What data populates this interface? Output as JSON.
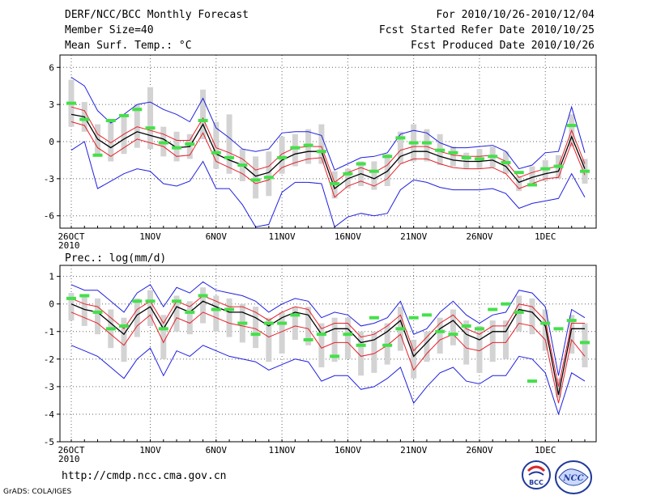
{
  "header": {
    "left": [
      "DERF/NCC/BCC Monthly Forecast",
      "Member Size=40",
      "Mean Surf. Temp.: °C"
    ],
    "right": [
      "For 2010/10/26-2010/12/04",
      "Fcst Started Refer Date 2010/10/25",
      "Fcst Produced Date 2010/10/26"
    ]
  },
  "footer": {
    "url": "http://cmdp.ncc.cma.gov.cn",
    "credit": "GrADS: COLA/IGES",
    "logo_bcc": "BCC",
    "logo_ncc": "NCC"
  },
  "colors": {
    "ensemble_mean": "#000000",
    "spread_inner": "#e8202a",
    "spread_outer": "#1f1fe0",
    "range_bar": "#d3d3d3",
    "observed_mark": "#44e04a",
    "grid": "#666666"
  },
  "chart_data": [
    {
      "type": "line",
      "panel": "temperature",
      "title": "Mean Surf. Temp.: °C",
      "ylim": [
        -7,
        7
      ],
      "yticks": [
        6,
        3,
        0,
        -3,
        -6
      ],
      "ylabel": "°C",
      "xtick_labels": [
        {
          "day": 0,
          "label": "26OCT",
          "sub": "2010"
        },
        {
          "day": 6,
          "label": "1NOV"
        },
        {
          "day": 11,
          "label": "6NOV"
        },
        {
          "day": 16,
          "label": "11NOV"
        },
        {
          "day": 21,
          "label": "16NOV"
        },
        {
          "day": 26,
          "label": "21NOV"
        },
        {
          "day": 31,
          "label": "26NOV"
        },
        {
          "day": 36,
          "label": "1DEC"
        }
      ],
      "days": 40,
      "series": [
        {
          "name": "ensemble mean",
          "values": [
            2.2,
            2.0,
            0.2,
            -0.5,
            0.2,
            0.8,
            0.5,
            0.2,
            -0.5,
            -0.4,
            1.4,
            -1.0,
            -1.5,
            -1.9,
            -2.8,
            -2.5,
            -1.5,
            -1.0,
            -0.8,
            -0.8,
            -3.8,
            -3.0,
            -2.6,
            -3.0,
            -2.4,
            -1.2,
            -0.8,
            -0.8,
            -1.2,
            -1.5,
            -1.6,
            -1.6,
            -1.5,
            -2.0,
            -3.3,
            -2.9,
            -2.6,
            -2.4,
            0.4,
            -2.2
          ]
        },
        {
          "name": "upper band",
          "values": [
            2.8,
            2.5,
            0.6,
            -0.1,
            0.6,
            1.2,
            0.9,
            0.6,
            0.1,
            0.1,
            1.9,
            -0.5,
            -0.9,
            -1.4,
            -2.3,
            -2.0,
            -1.0,
            -0.5,
            -0.4,
            -0.4,
            -3.3,
            -2.5,
            -2.1,
            -2.5,
            -1.9,
            -0.7,
            -0.4,
            -0.4,
            -0.8,
            -1.1,
            -1.2,
            -1.2,
            -1.1,
            -1.6,
            -2.9,
            -2.5,
            -2.2,
            -2.0,
            0.9,
            -1.8
          ]
        },
        {
          "name": "lower band",
          "values": [
            1.6,
            1.3,
            -0.5,
            -1.2,
            -0.5,
            0.2,
            -0.1,
            -0.4,
            -1.2,
            -1.1,
            0.7,
            -1.6,
            -2.1,
            -2.6,
            -3.4,
            -3.1,
            -2.1,
            -1.7,
            -1.4,
            -1.3,
            -4.5,
            -3.6,
            -3.2,
            -3.6,
            -3.0,
            -1.8,
            -1.4,
            -1.4,
            -1.8,
            -2.1,
            -2.2,
            -2.2,
            -2.1,
            -2.6,
            -3.8,
            -3.4,
            -3.0,
            -2.9,
            -0.1,
            -2.7
          ]
        },
        {
          "name": "maximum",
          "values": [
            5.2,
            4.5,
            2.5,
            1.5,
            2.2,
            3.0,
            3.2,
            2.6,
            2.2,
            1.6,
            3.5,
            1.1,
            0.3,
            -0.6,
            -0.8,
            -0.6,
            0.7,
            0.8,
            0.8,
            0.5,
            -2.3,
            -1.8,
            -1.3,
            -1.2,
            -0.9,
            0.6,
            0.9,
            0.7,
            -0.1,
            -0.5,
            -0.5,
            -0.4,
            -0.3,
            -0.8,
            -2.2,
            -1.9,
            -0.9,
            -0.8,
            2.8,
            -0.9
          ]
        },
        {
          "name": "minimum",
          "values": [
            -0.7,
            0.0,
            -3.8,
            -3.2,
            -2.6,
            -2.2,
            -2.4,
            -3.4,
            -3.6,
            -3.2,
            -1.6,
            -3.8,
            -3.8,
            -5.1,
            -6.9,
            -6.7,
            -4.1,
            -3.3,
            -3.3,
            -3.4,
            -6.9,
            -6.1,
            -5.8,
            -6.0,
            -5.8,
            -3.9,
            -3.1,
            -3.3,
            -3.7,
            -3.9,
            -3.9,
            -3.9,
            -3.8,
            -4.2,
            -5.4,
            -5.0,
            -4.8,
            -4.6,
            -2.6,
            -4.5
          ]
        }
      ],
      "range_bars": {
        "low": [
          1.2,
          0.8,
          -1.2,
          -1.6,
          -1.0,
          -0.5,
          -0.6,
          -1.2,
          -1.6,
          -1.4,
          0.2,
          -2.2,
          -2.6,
          -3.2,
          -4.6,
          -4.4,
          -2.6,
          -2.0,
          -1.8,
          -1.8,
          -4.6,
          -3.8,
          -3.6,
          -3.9,
          -3.6,
          -1.8,
          -1.6,
          -1.6,
          -1.9,
          -2.0,
          -2.2,
          -2.2,
          -2.1,
          -2.6,
          -4.0,
          -3.6,
          -3.2,
          -3.0,
          -0.4,
          -3.4
        ],
        "high": [
          5.0,
          3.2,
          1.4,
          1.8,
          2.2,
          3.0,
          4.4,
          1.2,
          0.8,
          0.6,
          4.2,
          1.6,
          2.2,
          -0.6,
          -1.2,
          -0.8,
          0.4,
          0.6,
          1.0,
          1.4,
          -2.4,
          -2.2,
          -1.6,
          -1.6,
          -1.0,
          0.8,
          1.4,
          1.0,
          0.6,
          -0.4,
          -0.9,
          -0.6,
          -0.4,
          -0.8,
          -2.8,
          -2.0,
          -1.5,
          -1.1,
          2.2,
          -1.4
        ]
      },
      "observed": [
        3.1,
        1.8,
        -1.1,
        1.7,
        2.1,
        2.6,
        1.1,
        -0.1,
        -0.5,
        -0.2,
        1.7,
        -0.9,
        -1.3,
        -1.9,
        -3.1,
        -2.9,
        -1.3,
        -0.5,
        -0.3,
        -0.8,
        -3.4,
        -2.6,
        -1.8,
        -2.4,
        -1.2,
        0.3,
        -0.1,
        -0.1,
        -0.7,
        -0.9,
        -1.3,
        -1.4,
        -1.2,
        -1.7,
        -2.5,
        -3.5,
        -2.2,
        -2.0,
        1.3,
        -2.4
      ]
    },
    {
      "type": "line",
      "panel": "precipitation",
      "title": "Prec.: log(mm/d)",
      "ylim": [
        -5,
        1.4
      ],
      "yticks": [
        1,
        0,
        -1,
        -2,
        -3,
        -4,
        -5
      ],
      "ylabel": "log(mm/d)",
      "xtick_labels": [
        {
          "day": 0,
          "label": "26OCT",
          "sub": "2010"
        },
        {
          "day": 6,
          "label": "1NOV"
        },
        {
          "day": 11,
          "label": "6NOV"
        },
        {
          "day": 16,
          "label": "11NOV"
        },
        {
          "day": 21,
          "label": "16NOV"
        },
        {
          "day": 26,
          "label": "21NOV"
        },
        {
          "day": 31,
          "label": "26NOV"
        },
        {
          "day": 36,
          "label": "1DEC"
        }
      ],
      "days": 40,
      "series": [
        {
          "name": "ensemble mean",
          "values": [
            0.0,
            -0.2,
            -0.3,
            -0.7,
            -1.1,
            -0.4,
            -0.1,
            -0.9,
            -0.1,
            -0.3,
            0.1,
            -0.1,
            -0.3,
            -0.3,
            -0.5,
            -0.8,
            -0.5,
            -0.3,
            -0.4,
            -1.1,
            -0.9,
            -0.9,
            -1.4,
            -1.3,
            -1.0,
            -0.6,
            -1.9,
            -1.4,
            -0.9,
            -0.6,
            -1.1,
            -1.3,
            -1.0,
            -1.0,
            -0.2,
            -0.3,
            -0.8,
            -3.3,
            -0.9,
            -0.9
          ]
        },
        {
          "name": "upper band",
          "values": [
            0.2,
            0.0,
            -0.1,
            -0.5,
            -0.9,
            -0.2,
            0.1,
            -0.7,
            0.1,
            -0.1,
            0.3,
            0.1,
            -0.1,
            -0.1,
            -0.3,
            -0.6,
            -0.3,
            -0.1,
            -0.2,
            -0.9,
            -0.7,
            -0.7,
            -1.2,
            -1.1,
            -0.8,
            -0.4,
            -1.7,
            -1.2,
            -0.7,
            -0.4,
            -0.9,
            -1.1,
            -0.8,
            -0.8,
            0.0,
            -0.1,
            -0.6,
            -3.0,
            -0.7,
            -0.7
          ]
        },
        {
          "name": "lower band",
          "values": [
            -0.3,
            -0.5,
            -0.7,
            -1.1,
            -1.5,
            -0.8,
            -0.4,
            -1.4,
            -0.5,
            -0.7,
            -0.3,
            -0.5,
            -0.7,
            -0.8,
            -0.9,
            -1.2,
            -1.0,
            -0.8,
            -0.9,
            -1.6,
            -1.4,
            -1.4,
            -1.9,
            -1.8,
            -1.5,
            -1.1,
            -2.4,
            -1.8,
            -1.3,
            -1.1,
            -1.6,
            -1.7,
            -1.4,
            -1.4,
            -0.7,
            -0.8,
            -1.3,
            -3.6,
            -1.3,
            -1.9
          ]
        },
        {
          "name": "maximum",
          "values": [
            0.7,
            0.5,
            0.5,
            0.1,
            -0.3,
            0.4,
            0.7,
            -0.1,
            0.6,
            0.4,
            0.8,
            0.5,
            0.4,
            0.3,
            0.1,
            -0.3,
            0.0,
            0.2,
            0.1,
            -0.5,
            -0.3,
            -0.4,
            -0.8,
            -0.7,
            -0.5,
            0.1,
            -1.1,
            -0.9,
            -0.3,
            0.1,
            -0.4,
            -0.7,
            -0.4,
            -0.3,
            0.5,
            0.4,
            -0.1,
            -2.6,
            -0.2,
            -0.5
          ]
        },
        {
          "name": "minimum",
          "values": [
            -1.5,
            -1.7,
            -1.9,
            -2.3,
            -2.7,
            -2.0,
            -1.6,
            -2.6,
            -1.7,
            -1.9,
            -1.5,
            -1.7,
            -1.9,
            -2.0,
            -2.1,
            -2.4,
            -2.2,
            -2.0,
            -2.1,
            -2.8,
            -2.6,
            -2.6,
            -3.1,
            -3.0,
            -2.7,
            -2.3,
            -3.6,
            -3.0,
            -2.5,
            -2.3,
            -2.8,
            -2.9,
            -2.6,
            -2.6,
            -1.9,
            -2.0,
            -2.5,
            -4.0,
            -2.5,
            -2.8
          ]
        }
      ],
      "range_bars": {
        "low": [
          -0.6,
          -0.8,
          -1.1,
          -1.6,
          -2.1,
          -1.2,
          -0.8,
          -2.0,
          -1.0,
          -1.1,
          -0.7,
          -1.0,
          -1.2,
          -1.4,
          -1.6,
          -2.1,
          -1.8,
          -1.3,
          -1.5,
          -2.3,
          -2.1,
          -2.0,
          -2.6,
          -2.5,
          -2.2,
          -1.7,
          -2.7,
          -2.1,
          -1.8,
          -1.5,
          -2.2,
          -2.5,
          -2.1,
          -2.0,
          -1.0,
          -1.1,
          -1.7,
          -3.4,
          -1.8,
          -2.3
        ],
        "high": [
          0.4,
          0.3,
          0.2,
          -0.2,
          -0.5,
          0.2,
          0.5,
          -0.4,
          0.3,
          0.1,
          0.6,
          0.3,
          0.2,
          0.0,
          -0.1,
          -0.5,
          -0.3,
          -0.1,
          -0.1,
          -0.7,
          -0.5,
          -0.5,
          -1.0,
          -1.0,
          -0.7,
          -0.1,
          -1.3,
          -1.0,
          -0.5,
          -0.2,
          -0.6,
          -0.8,
          -0.6,
          -0.6,
          0.3,
          0.2,
          -0.2,
          -2.7,
          -0.4,
          -0.7
        ]
      },
      "observed": [
        0.2,
        0.3,
        -0.3,
        -0.9,
        -0.8,
        0.1,
        0.1,
        -0.9,
        0.1,
        -0.3,
        0.3,
        -0.2,
        -0.2,
        -0.7,
        -1.1,
        -0.7,
        -0.7,
        -0.4,
        -1.3,
        -1.1,
        -1.9,
        -1.1,
        -1.5,
        -0.5,
        -1.5,
        -0.9,
        -0.5,
        -0.4,
        -1.0,
        -1.1,
        -0.8,
        -0.9,
        -0.2,
        -0.0,
        -0.3,
        -2.8,
        -0.7,
        -0.9,
        -0.6,
        -1.4
      ]
    }
  ]
}
